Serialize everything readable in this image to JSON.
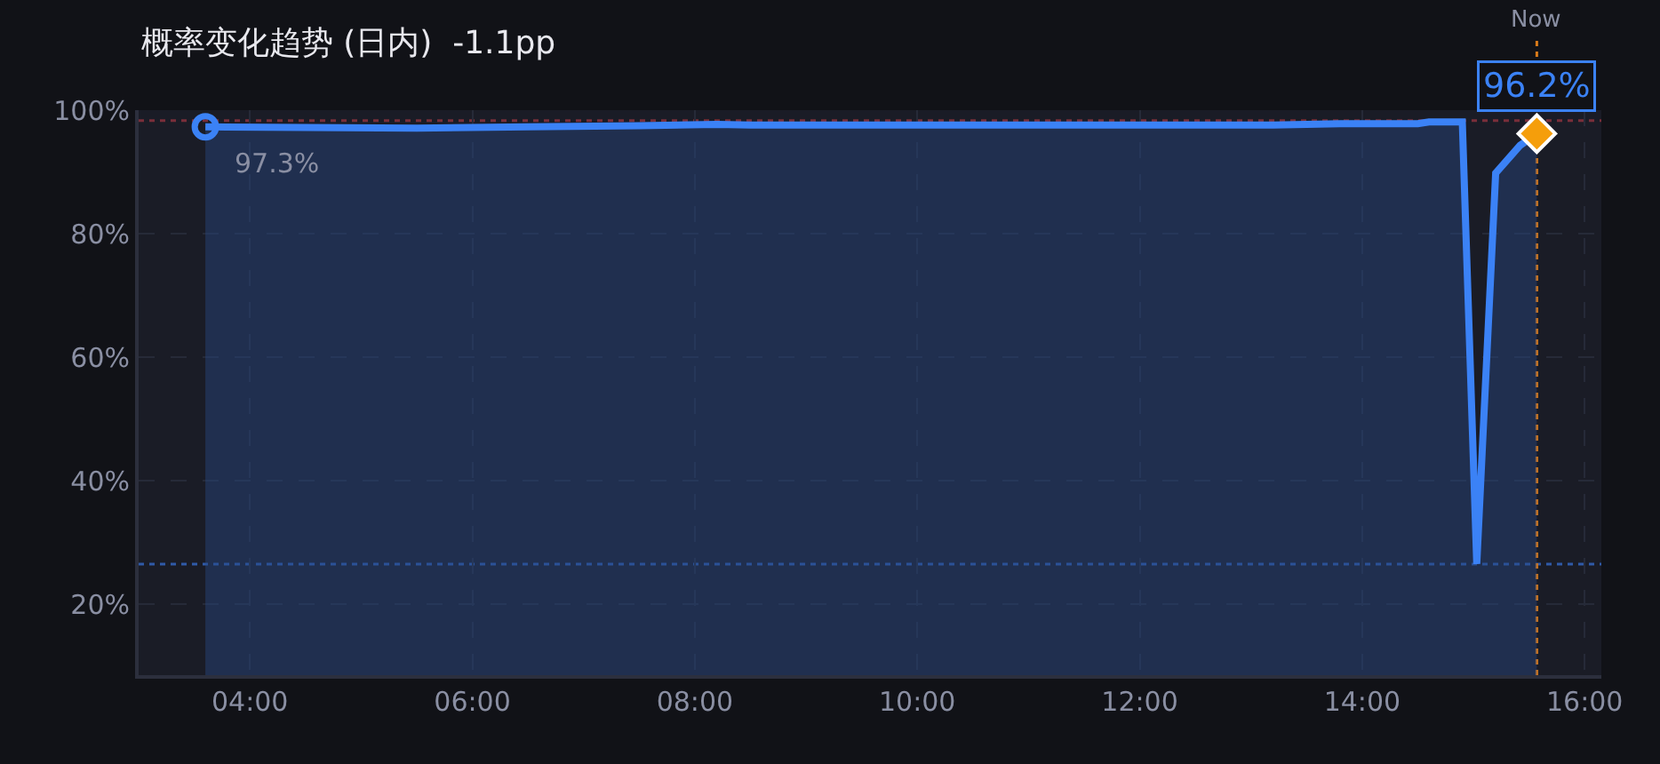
{
  "chart_data": {
    "type": "area",
    "title": "概率变化趋势 (日内)  -1.1pp",
    "xlim": [
      3.0,
      16.15
    ],
    "ylim": [
      8.5,
      100
    ],
    "xticks": [
      {
        "value": 4,
        "label": "04:00"
      },
      {
        "value": 6,
        "label": "06:00"
      },
      {
        "value": 8,
        "label": "08:00"
      },
      {
        "value": 10,
        "label": "10:00"
      },
      {
        "value": 12,
        "label": "12:00"
      },
      {
        "value": 14,
        "label": "14:00"
      },
      {
        "value": 16,
        "label": "16:00"
      }
    ],
    "yticks": [
      {
        "value": 20,
        "label": "20%"
      },
      {
        "value": 40,
        "label": "40%"
      },
      {
        "value": 60,
        "label": "60%"
      },
      {
        "value": 80,
        "label": "80%"
      },
      {
        "value": 100,
        "label": "100%"
      }
    ],
    "grid": true,
    "marker": "none",
    "line_style": "solid",
    "series": [
      {
        "color": "#3b82f6",
        "x": [
          3.6,
          4.5,
          5.5,
          6.5,
          7.5,
          8.2,
          8.5,
          10,
          12,
          13.2,
          13.8,
          14.5,
          14.6,
          14.9,
          15.03,
          15.2,
          15.42,
          15.57
        ],
        "values": [
          97.3,
          97.2,
          97.1,
          97.3,
          97.5,
          97.7,
          97.6,
          97.6,
          97.6,
          97.6,
          97.8,
          97.8,
          98.1,
          98.1,
          26.5,
          89.8,
          94.3,
          96.2
        ]
      },
      {
        "type": "scatter",
        "marker": "circle",
        "color": "#3b82f6",
        "x": [
          3.6
        ],
        "values": [
          97.3
        ]
      },
      {
        "type": "scatter",
        "marker": "diamond",
        "color": "#f59e0b",
        "x": [
          15.57
        ],
        "values": [
          96.2
        ]
      }
    ],
    "ref_lines": [
      {
        "axis": "y",
        "value": 98.3,
        "label": null,
        "color": "#7a2e3a",
        "line_style": "dotted"
      },
      {
        "axis": "y",
        "value": 26.5,
        "label": null,
        "color": "#2f5aa8",
        "line_style": "dotted"
      },
      {
        "axis": "x",
        "value": 15.57,
        "label": "Now",
        "color": "#d97a1a",
        "line_style": "dotted"
      }
    ],
    "annotations": [
      {
        "text": "97.3%",
        "x": 3.6,
        "y": 97.3
      },
      {
        "text": "96.2%",
        "x": 15.57,
        "y": 96.2
      }
    ]
  }
}
